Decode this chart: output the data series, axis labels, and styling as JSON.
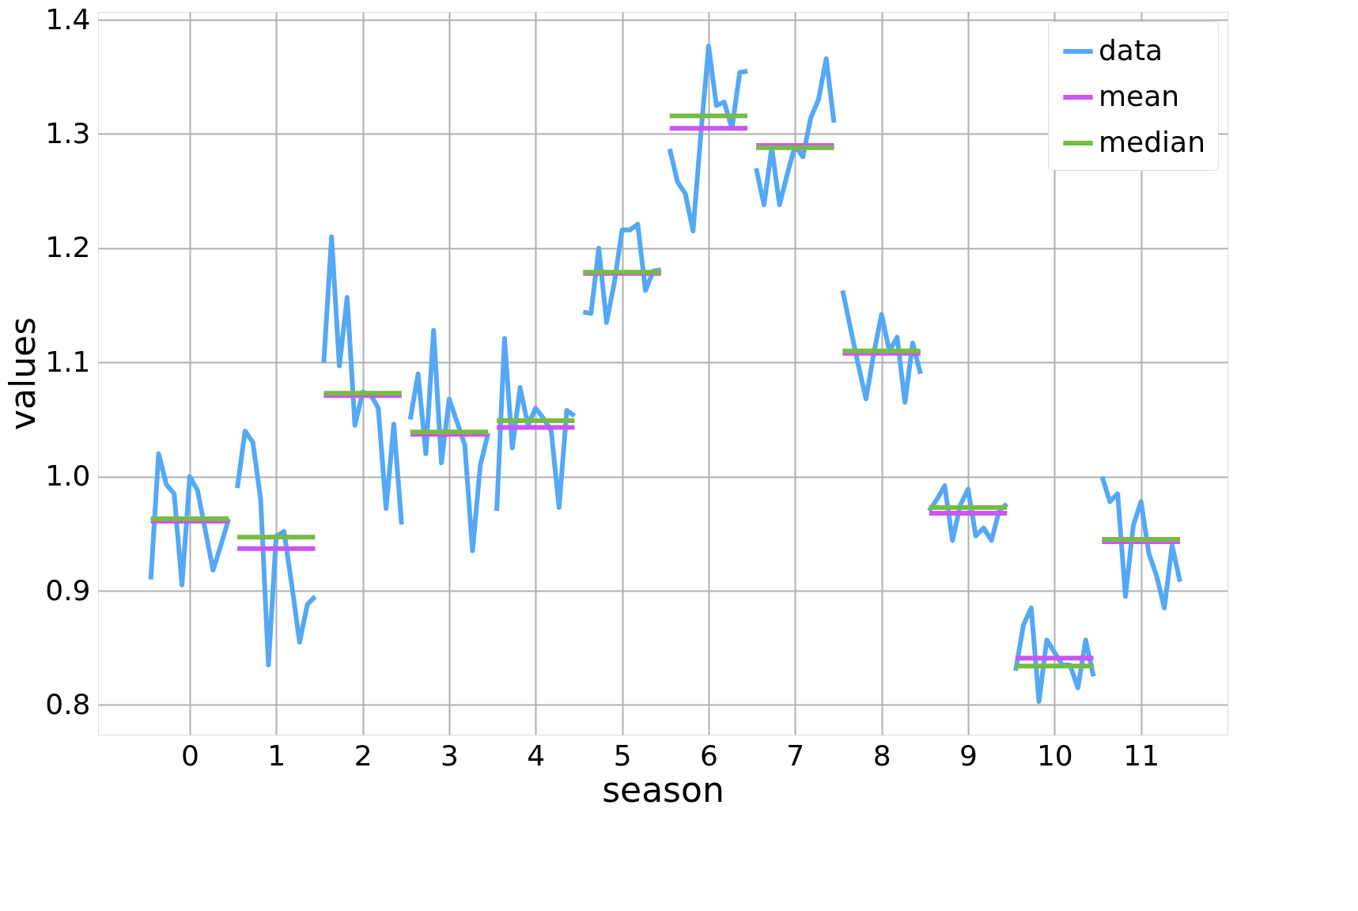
{
  "chart_data": {
    "type": "line",
    "xlabel": "season",
    "ylabel": "values",
    "xlim": [
      -1.06,
      12.0
    ],
    "ylim": [
      0.774,
      1.407
    ],
    "xticks": [
      0,
      1,
      2,
      3,
      4,
      5,
      6,
      7,
      8,
      9,
      10,
      11
    ],
    "yticks": [
      {
        "value": 0.8,
        "label": "0.8"
      },
      {
        "value": 0.9,
        "label": "0.9"
      },
      {
        "value": 1.0,
        "label": "1.0"
      },
      {
        "value": 1.1,
        "label": "1.1"
      },
      {
        "value": 1.2,
        "label": "1.2"
      },
      {
        "value": 1.3,
        "label": "1.3"
      },
      {
        "value": 1.4,
        "label": "1.4"
      }
    ],
    "grid": true,
    "legend": "top right",
    "line_style": "solid",
    "marker": "none",
    "series": [
      {
        "name": "data",
        "color": "#55a8f5",
        "x": [
          -0.45,
          -0.36,
          -0.27,
          -0.18,
          -0.09,
          0,
          0.09,
          0.18,
          0.27,
          0.36,
          0.45,
          0.5,
          0.55,
          0.64,
          0.73,
          0.82,
          0.91,
          1,
          1.09,
          1.18,
          1.27,
          1.36,
          1.45,
          1.5,
          1.55,
          1.64,
          1.73,
          1.82,
          1.91,
          2,
          2.09,
          2.18,
          2.27,
          2.36,
          2.45,
          2.5,
          2.55,
          2.64,
          2.73,
          2.82,
          2.91,
          3,
          3.09,
          3.18,
          3.27,
          3.36,
          3.45,
          3.5,
          3.55,
          3.64,
          3.73,
          3.82,
          3.91,
          4,
          4.09,
          4.18,
          4.27,
          4.36,
          4.45,
          4.5,
          4.55,
          4.64,
          4.73,
          4.82,
          4.91,
          5,
          5.09,
          5.18,
          5.27,
          5.36,
          5.45,
          5.5,
          5.55,
          5.64,
          5.73,
          5.82,
          5.91,
          6,
          6.09,
          6.18,
          6.27,
          6.36,
          6.45,
          6.5,
          6.55,
          6.64,
          6.73,
          6.82,
          6.91,
          7,
          7.09,
          7.18,
          7.27,
          7.36,
          7.45,
          7.5,
          7.55,
          7.64,
          7.73,
          7.82,
          7.91,
          8,
          8.09,
          8.18,
          8.27,
          8.36,
          8.45,
          8.5,
          8.55,
          8.64,
          8.73,
          8.82,
          8.91,
          9,
          9.09,
          9.18,
          9.27,
          9.36,
          9.45,
          9.5,
          9.55,
          9.64,
          9.73,
          9.82,
          9.91,
          10,
          10.09,
          10.18,
          10.27,
          10.36,
          10.45,
          10.5,
          10.55,
          10.64,
          10.73,
          10.82,
          10.91,
          11,
          11.09,
          11.18,
          11.27,
          11.36,
          11.45
        ],
        "values": [
          0.91,
          1.02,
          0.993,
          0.985,
          0.905,
          1.0,
          0.988,
          0.953,
          0.918,
          0.94,
          0.963,
          null,
          0.99,
          1.04,
          1.03,
          0.98,
          0.835,
          0.948,
          0.952,
          0.905,
          0.855,
          0.888,
          0.895,
          null,
          1.1,
          1.21,
          1.097,
          1.157,
          1.045,
          1.074,
          1.072,
          1.06,
          0.972,
          1.046,
          0.958,
          null,
          1.05,
          1.09,
          1.02,
          1.128,
          1.012,
          1.068,
          1.048,
          1.028,
          0.935,
          1.01,
          1.038,
          null,
          0.97,
          1.121,
          1.025,
          1.078,
          1.045,
          1.06,
          1.051,
          1.04,
          0.973,
          1.058,
          1.053,
          null,
          1.144,
          1.143,
          1.2,
          1.135,
          1.17,
          1.216,
          1.216,
          1.221,
          1.163,
          1.18,
          1.181,
          null,
          1.287,
          1.258,
          1.248,
          1.215,
          1.3,
          1.377,
          1.325,
          1.328,
          1.305,
          1.354,
          1.355,
          null,
          1.27,
          1.238,
          1.288,
          1.238,
          1.265,
          1.29,
          1.28,
          1.314,
          1.33,
          1.366,
          1.31,
          null,
          1.163,
          1.13,
          1.098,
          1.068,
          1.108,
          1.142,
          1.11,
          1.122,
          1.065,
          1.117,
          1.09,
          null,
          0.97,
          0.98,
          0.992,
          0.944,
          0.975,
          0.989,
          0.948,
          0.955,
          0.944,
          0.97,
          0.976,
          null,
          0.83,
          0.87,
          0.885,
          0.803,
          0.857,
          0.846,
          0.835,
          0.835,
          0.815,
          0.857,
          0.825,
          null,
          1.0,
          0.978,
          0.985,
          0.895,
          0.957,
          0.978,
          0.933,
          0.913,
          0.885,
          0.94,
          0.908
        ]
      },
      {
        "name": "mean",
        "color": "#cc55f5",
        "x": [
          -0.45,
          0.45,
          0.5,
          0.55,
          1.45,
          1.5,
          1.55,
          2.45,
          2.5,
          2.55,
          3.45,
          3.5,
          3.55,
          4.45,
          4.5,
          4.55,
          5.45,
          5.5,
          5.55,
          6.45,
          6.5,
          6.55,
          7.45,
          7.5,
          7.55,
          8.45,
          8.5,
          8.55,
          9.45,
          9.5,
          9.55,
          10.45,
          10.5,
          10.55,
          11.45
        ],
        "values": [
          0.961,
          0.961,
          null,
          0.937,
          0.937,
          null,
          1.071,
          1.071,
          null,
          1.037,
          1.037,
          null,
          1.043,
          1.043,
          null,
          1.178,
          1.178,
          null,
          1.305,
          1.305,
          null,
          1.29,
          1.29,
          null,
          1.108,
          1.108,
          null,
          0.968,
          0.968,
          null,
          0.841,
          0.841,
          null,
          0.943,
          0.943
        ]
      },
      {
        "name": "median",
        "color": "#77bb44",
        "x": [
          -0.45,
          0.45,
          0.5,
          0.55,
          1.45,
          1.5,
          1.55,
          2.45,
          2.5,
          2.55,
          3.45,
          3.5,
          3.55,
          4.45,
          4.5,
          4.55,
          5.45,
          5.5,
          5.55,
          6.45,
          6.5,
          6.55,
          7.45,
          7.5,
          7.55,
          8.45,
          8.5,
          8.55,
          9.45,
          9.5,
          9.55,
          10.45,
          10.5,
          10.55,
          11.45
        ],
        "values": [
          0.963,
          0.963,
          null,
          0.947,
          0.947,
          null,
          1.073,
          1.073,
          null,
          1.039,
          1.039,
          null,
          1.049,
          1.049,
          null,
          1.179,
          1.179,
          null,
          1.316,
          1.316,
          null,
          1.288,
          1.288,
          null,
          1.11,
          1.11,
          null,
          0.973,
          0.973,
          null,
          0.834,
          0.834,
          null,
          0.945,
          0.945
        ]
      }
    ]
  }
}
